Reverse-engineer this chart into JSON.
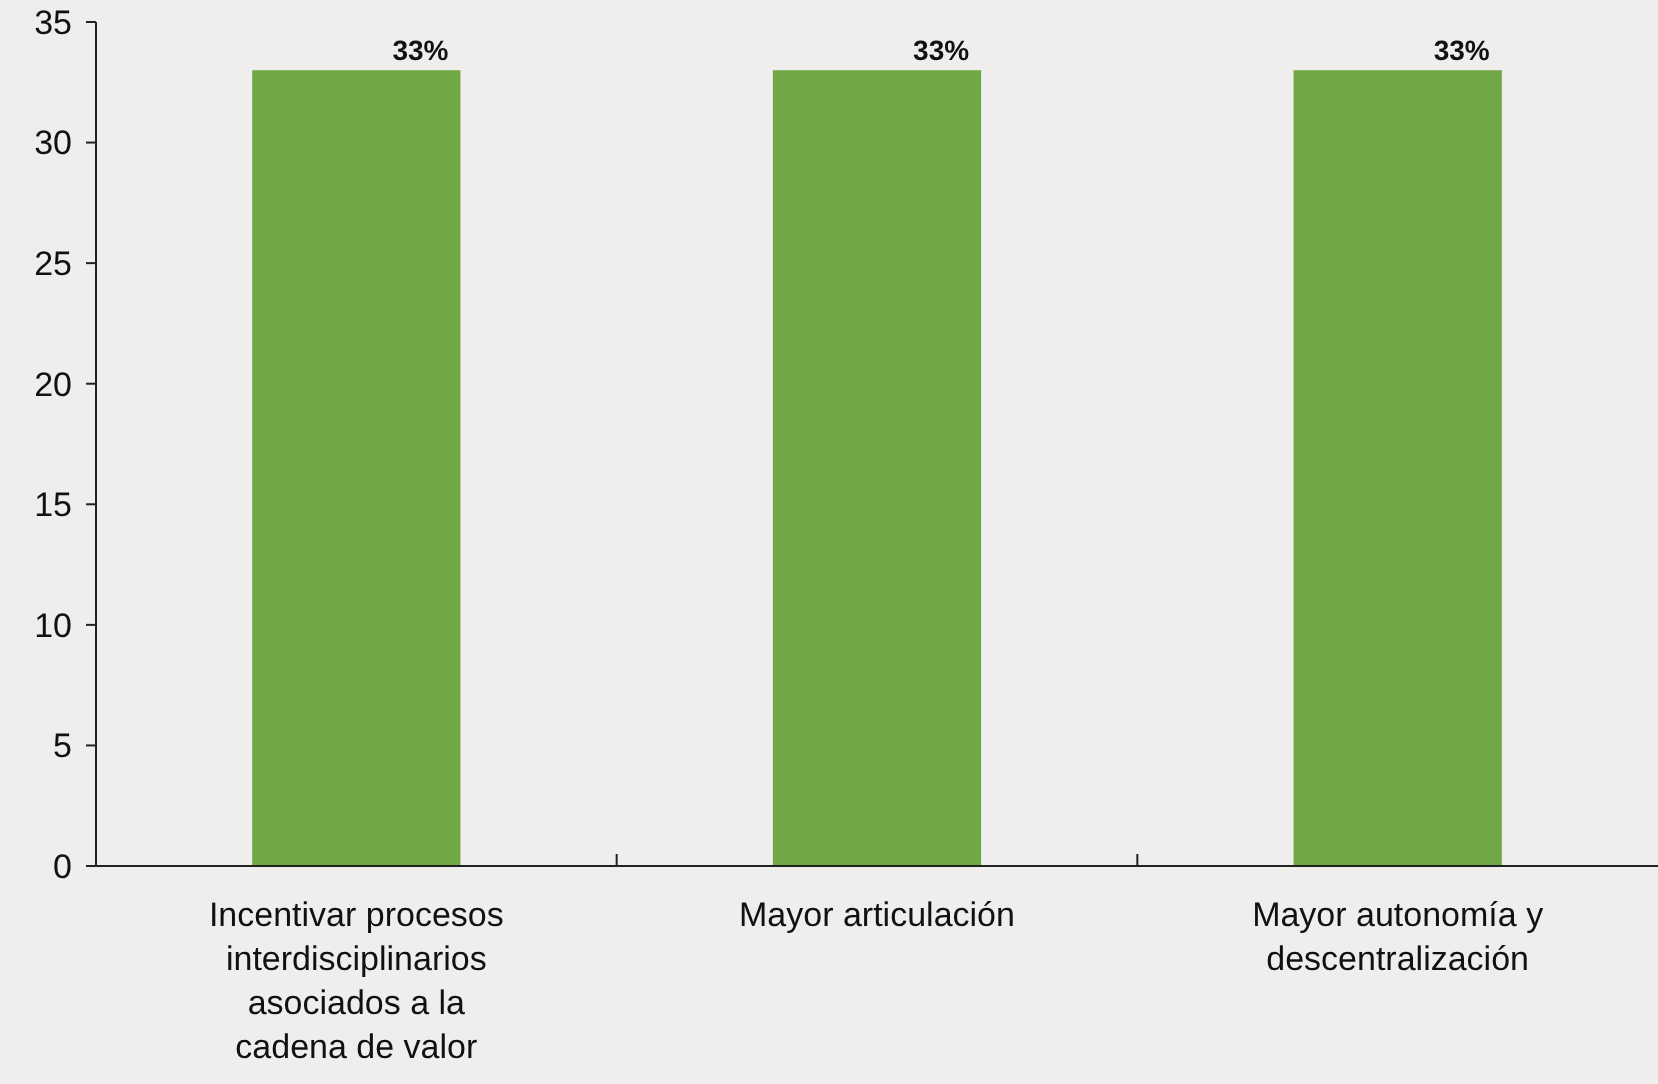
{
  "chart_data": {
    "type": "bar",
    "categories": [
      "Incentivar procesos interdisciplinarios asociados a la cadena de valor",
      "Mayor articulación",
      "Mayor autonomía y descentralización"
    ],
    "values": [
      33,
      33,
      33
    ],
    "value_labels": [
      "33%",
      "33%",
      "33%"
    ],
    "color": "#70a845",
    "ylim": [
      0,
      35
    ],
    "yticks": [
      0,
      5,
      10,
      15,
      20,
      25,
      30,
      35
    ],
    "grid": false
  }
}
